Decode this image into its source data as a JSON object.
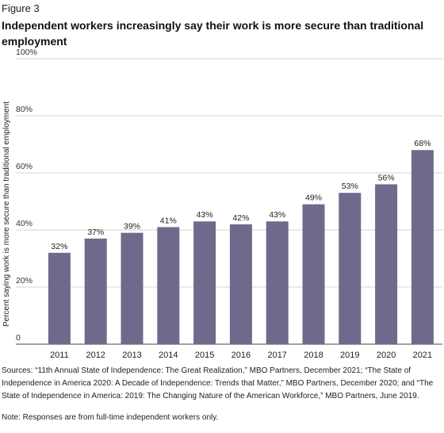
{
  "figure_label": "Figure 3",
  "title": "Independent workers increasingly say their work is more secure than traditional employment",
  "chart_data": {
    "type": "bar",
    "categories": [
      "2011",
      "2012",
      "2013",
      "2014",
      "2015",
      "2016",
      "2017",
      "2018",
      "2019",
      "2020",
      "2021"
    ],
    "values": [
      32,
      37,
      39,
      41,
      43,
      42,
      43,
      49,
      53,
      56,
      68
    ],
    "data_labels": [
      "32%",
      "37%",
      "39%",
      "41%",
      "43%",
      "42%",
      "43%",
      "49%",
      "53%",
      "56%",
      "68%"
    ],
    "ylabel": "Percent saying work is more secure than traditional employment",
    "ylim": [
      0,
      100
    ],
    "yticks": [
      0,
      20,
      40,
      60,
      80,
      100
    ],
    "ytick_labels": [
      "0",
      "20%",
      "40%",
      "60%",
      "80%",
      "100%"
    ],
    "grid": true,
    "bar_color": "#6f6a8c"
  },
  "sources": "Sources: “11th Annual State of Independence: The Great Realization,” MBO Partners, December 2021; “The State of Independence in America 2020: A Decade of Independence: Trends that Matter,” MBO Partners, December 2020; and “The State of Independence in America: 2019: The Changing Nature of the American Workforce,” MBO Partners, June 2019.",
  "note": "Note: Responses are from full-time independent workers only."
}
